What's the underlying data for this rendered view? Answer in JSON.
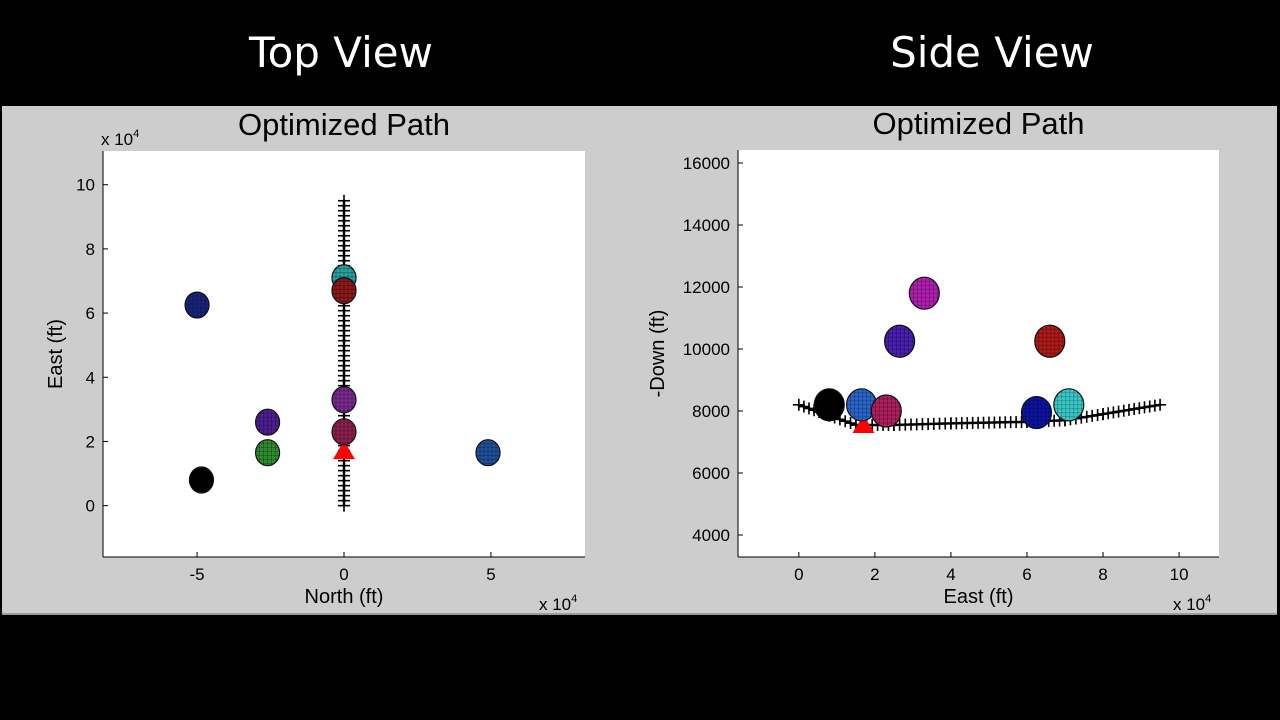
{
  "header": {
    "left_title": "Top View",
    "right_title": "Side View"
  },
  "colors": {
    "background": "#000000",
    "figure_bg": "#cdcdcd",
    "axes_bg": "#ffffff",
    "path": "#000000",
    "start_marker": "#ff0000"
  },
  "chart_data": [
    {
      "type": "scatter",
      "title": "Optimized Path",
      "xlabel": "North (ft)",
      "ylabel": "East (ft)",
      "x_multiplier": "x 10^4",
      "y_multiplier": "x 10^4",
      "xlim": [
        -8.2,
        8.2
      ],
      "ylim": [
        -1.6,
        11.05
      ],
      "xticks": [
        -5,
        0,
        5
      ],
      "yticks": [
        0,
        2,
        4,
        6,
        8,
        10
      ],
      "grid": false,
      "path": {
        "name": "optimized-path",
        "marker": "+",
        "points": [
          [
            0,
            0
          ],
          [
            0,
            9.5
          ]
        ]
      },
      "start_marker": {
        "shape": "triangle",
        "color": "#ff0000",
        "x": 0,
        "y": 1.7
      },
      "spheres": [
        {
          "color": "#1a237a",
          "x": -5.0,
          "y": 6.25
        },
        {
          "color": "#4b1f8f",
          "x": -2.6,
          "y": 2.6
        },
        {
          "color": "#2e8b2e",
          "x": -2.6,
          "y": 1.65
        },
        {
          "color": "#000000",
          "x": -4.85,
          "y": 0.8
        },
        {
          "color": "#2aa3a3",
          "x": 0,
          "y": 7.1
        },
        {
          "color": "#8b1a1a",
          "x": 0,
          "y": 6.7
        },
        {
          "color": "#7a2a8f",
          "x": 0,
          "y": 3.3
        },
        {
          "color": "#8b1f4f",
          "x": 0,
          "y": 2.3
        },
        {
          "color": "#1f4f9a",
          "x": 4.9,
          "y": 1.65
        }
      ]
    },
    {
      "type": "scatter",
      "title": "Optimized Path",
      "xlabel": "East (ft)",
      "ylabel": "-Down (ft)",
      "x_multiplier": "x 10^4",
      "xlim": [
        -1.6,
        11.05
      ],
      "ylim": [
        3290,
        16420
      ],
      "xticks": [
        0,
        2,
        4,
        6,
        8,
        10
      ],
      "yticks": [
        4000,
        6000,
        8000,
        10000,
        12000,
        14000,
        16000
      ],
      "grid": false,
      "path": {
        "name": "optimized-path",
        "marker": "+",
        "points": [
          [
            0,
            8200
          ],
          [
            0.8,
            7850
          ],
          [
            1.5,
            7550
          ],
          [
            2.5,
            7550
          ],
          [
            4,
            7600
          ],
          [
            6,
            7650
          ],
          [
            7,
            7700
          ],
          [
            8,
            7900
          ],
          [
            9.5,
            8200
          ]
        ]
      },
      "start_marker": {
        "shape": "triangle",
        "color": "#ff0000",
        "x": 1.7,
        "y": 7550
      },
      "spheres": [
        {
          "color": "#b01fb0",
          "x": 3.3,
          "y": 11800
        },
        {
          "color": "#4b1fb0",
          "x": 2.65,
          "y": 10250
        },
        {
          "color": "#b01a1a",
          "x": 6.6,
          "y": 10250
        },
        {
          "color": "#000000",
          "x": 0.8,
          "y": 8200
        },
        {
          "color": "#2a64c8",
          "x": 1.65,
          "y": 8200
        },
        {
          "color": "#b01f5f",
          "x": 2.3,
          "y": 8000
        },
        {
          "color": "#0a14a0",
          "x": 6.25,
          "y": 7950
        },
        {
          "color": "#3ac8c8",
          "x": 7.1,
          "y": 8200
        }
      ]
    }
  ]
}
